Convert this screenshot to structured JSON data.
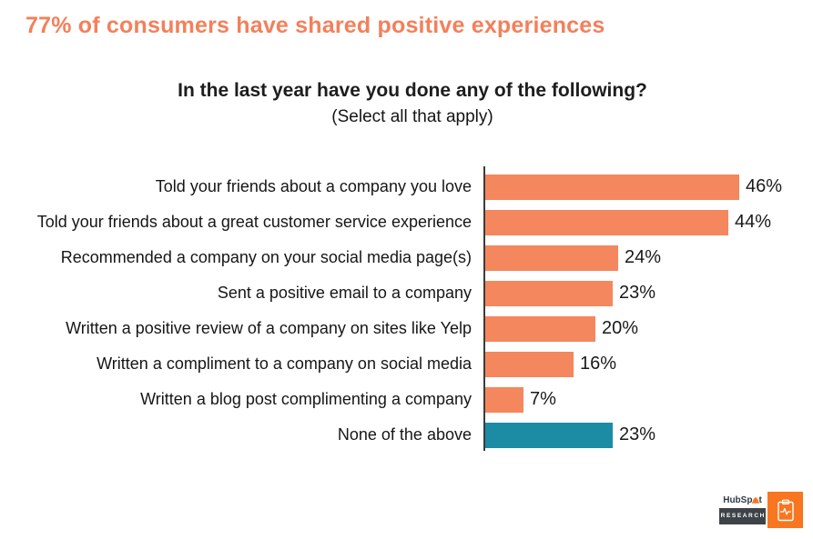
{
  "header": {
    "title": "77% of consumers have shared positive experiences"
  },
  "chart_data": {
    "type": "bar",
    "orientation": "horizontal",
    "title": "In the last year have you done any of the following?",
    "subtitle": "(Select all that apply)",
    "categories": [
      "Told your friends about a company you love",
      "Told your friends about a great customer service experience",
      "Recommended a company on your social media page(s)",
      "Sent a positive email to a company",
      "Written a positive review of a company on sites like Yelp",
      "Written a compliment to a company on social media",
      "Written a blog post complimenting a company",
      "None of the above"
    ],
    "values": [
      46,
      44,
      24,
      23,
      20,
      16,
      7,
      23
    ],
    "value_labels": [
      "46%",
      "44%",
      "24%",
      "23%",
      "20%",
      "16%",
      "7%",
      "23%"
    ],
    "bar_colors": [
      "#F4875D",
      "#F4875D",
      "#F4875D",
      "#F4875D",
      "#F4875D",
      "#F4875D",
      "#F4875D",
      "#1B8CA3"
    ],
    "xlim": [
      0,
      50
    ],
    "grid": false,
    "legend": "none",
    "axis_color": "#3B3B3B"
  },
  "branding": {
    "brand_prefix": "HubSp",
    "brand_suffix": "t",
    "research_label": "RESEARCH"
  },
  "colors": {
    "title_orange": "#F3805B",
    "bar_orange": "#F4875D",
    "highlight_teal": "#1B8CA3",
    "axis": "#3B3B3B",
    "logo_orange": "#F8761F",
    "logo_dark": "#3E4348"
  }
}
